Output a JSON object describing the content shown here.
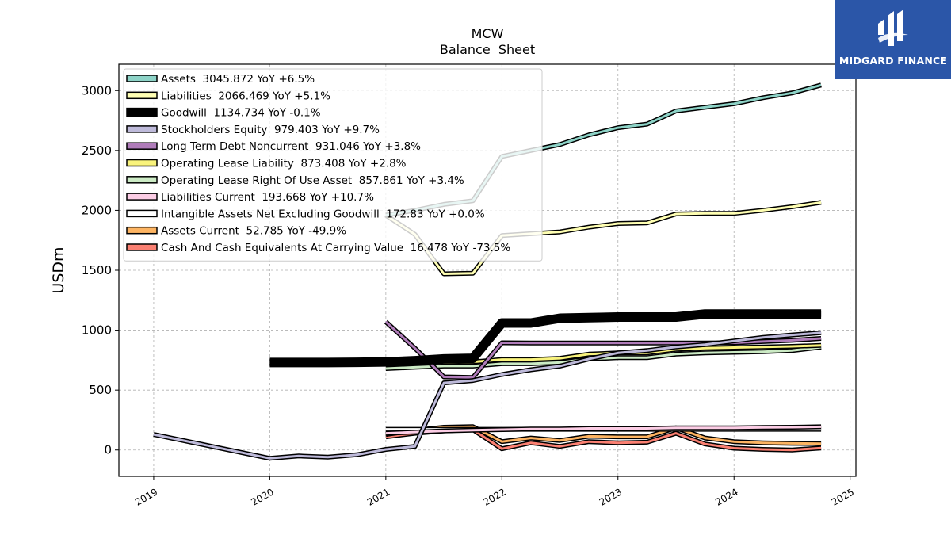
{
  "chart_data": {
    "type": "line",
    "title": "MCW",
    "subtitle": "Balance  Sheet",
    "ylabel": "USDm",
    "xlabel": "",
    "ylim": [
      -220,
      3220
    ],
    "xlim": [
      2018.7,
      2025.05
    ],
    "yticks": [
      0,
      500,
      1000,
      1500,
      2000,
      2500,
      3000
    ],
    "xticks": [
      "2019",
      "2020",
      "2021",
      "2022",
      "2023",
      "2024",
      "2025"
    ],
    "grid": true,
    "legend_position": "top-left",
    "series": [
      {
        "name": "Assets  3045.872 YoY +6.5%",
        "color": "#8dd3c7",
        "width": 3,
        "x": [
          2021.0,
          2021.25,
          2021.5,
          2021.75,
          2022.0,
          2022.25,
          2022.5,
          2022.75,
          2023.0,
          2023.25,
          2023.5,
          2023.75,
          2024.0,
          2024.25,
          2024.5,
          2024.75
        ],
        "y": [
          1960,
          2000,
          2050,
          2080,
          2450,
          2500,
          2550,
          2630,
          2690,
          2720,
          2830,
          2860,
          2890,
          2940,
          2980,
          3046
        ]
      },
      {
        "name": "Liabilities  2066.469 YoY +5.1%",
        "color": "#ffffb3",
        "width": 3,
        "x": [
          2021.0,
          2021.25,
          2021.5,
          2021.75,
          2022.0,
          2022.25,
          2022.5,
          2022.75,
          2023.0,
          2023.25,
          2023.5,
          2023.75,
          2024.0,
          2024.25,
          2024.5,
          2024.75
        ],
        "y": [
          1960,
          1800,
          1470,
          1475,
          1790,
          1805,
          1820,
          1860,
          1890,
          1895,
          1970,
          1975,
          1975,
          2000,
          2030,
          2066
        ]
      },
      {
        "name": "Goodwill  1134.734 YoY -0.1%",
        "color": "#000000",
        "width": 9,
        "x": [
          2019.0,
          2020.0,
          2020.25,
          2020.5,
          2020.75,
          2021.0,
          2021.25,
          2021.5,
          2021.75,
          2022.0,
          2022.25,
          2022.5,
          2022.75,
          2023.0,
          2023.25,
          2023.5,
          2023.75,
          2024.0,
          2024.25,
          2024.5,
          2024.75
        ],
        "y": [
          null,
          730,
          730,
          730,
          732,
          735,
          745,
          760,
          765,
          1060,
          1060,
          1100,
          1105,
          1110,
          1110,
          1110,
          1135,
          1135,
          1135,
          1135,
          1135
        ]
      },
      {
        "name": "Stockholders Equity  979.403 YoY +9.7%",
        "color": "#bebada",
        "width": 3,
        "x": [
          2019.0,
          2020.0,
          2020.25,
          2020.5,
          2020.75,
          2021.0,
          2021.25,
          2021.5,
          2021.75,
          2022.0,
          2022.25,
          2022.5,
          2022.75,
          2023.0,
          2023.25,
          2023.5,
          2023.75,
          2024.0,
          2024.25,
          2024.5,
          2024.75
        ],
        "y": [
          130,
          -70,
          -50,
          -60,
          -40,
          5,
          30,
          560,
          580,
          630,
          670,
          700,
          760,
          810,
          830,
          860,
          880,
          910,
          940,
          960,
          979
        ]
      },
      {
        "name": "Long Term Debt Noncurrent  931.046 YoY +3.8%",
        "color": "#b07cba",
        "width": 3,
        "x": [
          2021.0,
          2021.25,
          2021.5,
          2021.75,
          2022.0,
          2022.25,
          2022.5,
          2022.75,
          2023.0,
          2023.25,
          2023.5,
          2023.75,
          2024.0,
          2024.25,
          2024.5,
          2024.75
        ],
        "y": [
          1070,
          850,
          610,
          605,
          895,
          893,
          893,
          893,
          893,
          893,
          893,
          893,
          895,
          905,
          915,
          931
        ]
      },
      {
        "name": "Operating Lease Liability  873.408 YoY +2.8%",
        "color": "#f9f37c",
        "width": 3,
        "x": [
          2021.5,
          2021.75,
          2022.0,
          2022.25,
          2022.5,
          2022.75,
          2023.0,
          2023.25,
          2023.5,
          2023.75,
          2024.0,
          2024.25,
          2024.5,
          2024.75
        ],
        "y": [
          730,
          735,
          755,
          755,
          765,
          800,
          810,
          810,
          840,
          850,
          855,
          860,
          865,
          873
        ]
      },
      {
        "name": "Operating Lease Right Of Use Asset  857.861 YoY +3.4%",
        "color": "#ccebc5",
        "width": 3,
        "x": [
          2021.0,
          2021.25,
          2021.5,
          2021.75,
          2022.0,
          2022.25,
          2022.5,
          2022.75,
          2023.0,
          2023.25,
          2023.5,
          2023.75,
          2024.0,
          2024.25,
          2024.5,
          2024.75
        ],
        "y": [
          680,
          690,
          700,
          700,
          720,
          720,
          730,
          760,
          770,
          770,
          800,
          810,
          815,
          820,
          830,
          858
        ]
      },
      {
        "name": "Liabilities Current  193.668 YoY +10.7%",
        "color": "#fccde5",
        "width": 3,
        "x": [
          2021.0,
          2021.25,
          2021.5,
          2021.75,
          2022.0,
          2022.25,
          2022.5,
          2022.75,
          2023.0,
          2023.25,
          2023.5,
          2023.75,
          2024.0,
          2024.25,
          2024.5,
          2024.75
        ],
        "y": [
          140,
          150,
          160,
          165,
          170,
          175,
          175,
          180,
          180,
          180,
          185,
          185,
          185,
          188,
          190,
          194
        ]
      },
      {
        "name": "Intangible Assets Net Excluding Goodwill  172.83 YoY +0.0%",
        "color": "#ffffff",
        "width": 3,
        "x": [
          2021.0,
          2021.25,
          2021.5,
          2021.75,
          2022.0,
          2022.25,
          2022.5,
          2022.75,
          2023.0,
          2023.25,
          2023.5,
          2023.75,
          2024.0,
          2024.25,
          2024.5,
          2024.75
        ],
        "y": [
          173,
          173,
          173,
          173,
          173,
          173,
          173,
          173,
          173,
          173,
          173,
          173,
          173,
          173,
          173,
          173
        ]
      },
      {
        "name": "Assets Current  52.785 YoY -49.9%",
        "color": "#fdb462",
        "width": 3,
        "x": [
          2021.0,
          2021.25,
          2021.5,
          2021.75,
          2022.0,
          2022.25,
          2022.5,
          2022.75,
          2023.0,
          2023.25,
          2023.5,
          2023.75,
          2024.0,
          2024.25,
          2024.5,
          2024.75
        ],
        "y": [
          130,
          165,
          190,
          195,
          70,
          100,
          80,
          115,
          110,
          110,
          185,
          100,
          70,
          60,
          55,
          53
        ]
      },
      {
        "name": "Cash And Cash Equivalents At Carrying Value  16.478 YoY -73.5%",
        "color": "#fb8072",
        "width": 3,
        "x": [
          2021.0,
          2021.25,
          2021.5,
          2021.75,
          2022.0,
          2022.25,
          2022.5,
          2022.75,
          2023.0,
          2023.25,
          2023.5,
          2023.75,
          2024.0,
          2024.25,
          2024.5,
          2024.75
        ],
        "y": [
          110,
          140,
          160,
          170,
          10,
          60,
          30,
          70,
          60,
          65,
          140,
          50,
          15,
          5,
          0,
          16
        ]
      }
    ]
  },
  "logo": {
    "text": "MIDGARD FINANCE",
    "color": "#2b56a8"
  }
}
